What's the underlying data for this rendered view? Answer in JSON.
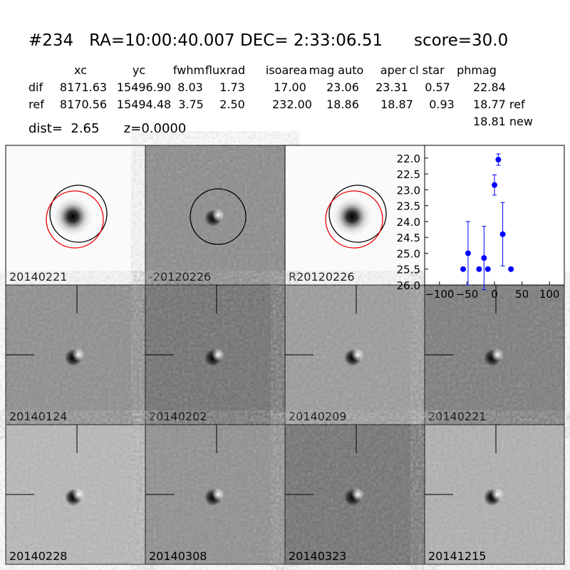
{
  "header": {
    "title": "#234   RA=10:00:40.007 DEC= 2:33:06.51      score=30.0"
  },
  "table": {
    "columns": [
      "xc",
      "yc",
      "fwhm",
      "fluxrad",
      "isoarea",
      "mag auto",
      "aper",
      "cl star",
      "phmag"
    ],
    "rows": [
      [
        "dif",
        "8171.63",
        "15496.90",
        "8.03",
        "1.73",
        "17.00",
        "23.06",
        "23.31",
        "0.57",
        "22.84"
      ],
      [
        "ref",
        "8170.56",
        "15494.48",
        "3.75",
        "2.50",
        "232.00",
        "18.86",
        "18.87",
        "0.93",
        "18.77 ref"
      ]
    ],
    "note": "18.81 new"
  },
  "info": "dist=  2.65      z=0.0000",
  "stamps": [
    {
      "label": "20140221"
    },
    {
      "label": "-20120226"
    },
    {
      "label": "R20120226"
    },
    {
      "label": "20140124"
    },
    {
      "label": "20140202"
    },
    {
      "label": "20140209"
    },
    {
      "label": "20140221",
      "label_color": "#ff0000"
    },
    {
      "label": "20140228"
    },
    {
      "label": "20140308"
    },
    {
      "label": "20140323"
    },
    {
      "label": "20141215"
    }
  ],
  "chart_data": {
    "type": "errorbar",
    "color": "#0000ff",
    "x": [
      -57,
      -48,
      -28,
      -19,
      -12,
      0,
      7,
      15,
      30
    ],
    "values": [
      25.5,
      25.0,
      25.5,
      25.15,
      25.5,
      22.85,
      22.05,
      24.4,
      25.5
    ],
    "errors": [
      0.05,
      1.0,
      0.05,
      1.0,
      0.05,
      0.32,
      0.18,
      1.0,
      0.05
    ],
    "xlim": [
      -127,
      127
    ],
    "xticks": [
      {
        "value": -100,
        "label": "−100"
      },
      {
        "value": -50,
        "label": "−50"
      },
      0,
      50,
      100
    ],
    "ylim": [
      26.0,
      21.6
    ],
    "yticks": [
      {
        "value": 22,
        "label": "22.0"
      },
      22.5,
      {
        "value": 23,
        "label": "23.0"
      },
      23.5,
      {
        "value": 24,
        "label": "24.0"
      },
      24.5,
      {
        "value": 25,
        "label": "25.0"
      },
      25.5,
      {
        "value": 26,
        "label": "26.0"
      }
    ]
  }
}
